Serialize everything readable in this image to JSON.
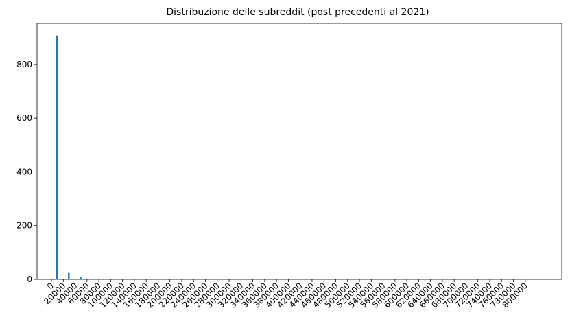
{
  "chart_data": {
    "type": "bar",
    "title": "Distribuzione delle subreddit (post precedenti al 2021)",
    "xlabel": "",
    "ylabel": "",
    "x": [
      0,
      20000,
      40000,
      60000,
      80000,
      100000,
      120000,
      140000,
      160000,
      180000,
      200000,
      220000,
      240000,
      260000,
      280000,
      300000,
      320000,
      340000,
      360000,
      380000,
      400000,
      420000,
      440000,
      460000,
      480000,
      500000,
      520000,
      540000,
      560000,
      580000,
      600000,
      620000,
      640000,
      660000,
      680000,
      700000,
      720000,
      740000,
      760000,
      780000,
      800000
    ],
    "xticks": [
      "0",
      "20000",
      "40000",
      "60000",
      "80000",
      "100000",
      "120000",
      "140000",
      "160000",
      "180000",
      "200000",
      "220000",
      "240000",
      "260000",
      "280000",
      "300000",
      "320000",
      "340000",
      "360000",
      "380000",
      "400000",
      "420000",
      "440000",
      "460000",
      "480000",
      "500000",
      "520000",
      "540000",
      "560000",
      "580000",
      "600000",
      "620000",
      "640000",
      "660000",
      "680000",
      "700000",
      "720000",
      "740000",
      "760000",
      "780000",
      "800000"
    ],
    "yticks": [
      "0",
      "200",
      "400",
      "600",
      "800"
    ],
    "values": [
      908,
      24,
      9,
      3,
      2,
      2,
      2,
      1,
      1,
      0,
      0,
      0,
      0,
      0,
      0,
      1,
      0,
      1,
      0,
      0,
      0,
      0,
      0,
      0,
      0,
      0,
      0,
      0,
      0,
      0,
      0,
      0,
      0,
      0,
      0,
      0,
      0,
      0,
      0,
      0,
      1
    ],
    "ylim": [
      0,
      953
    ],
    "grid": false,
    "bar_color": "#1f77b4"
  }
}
